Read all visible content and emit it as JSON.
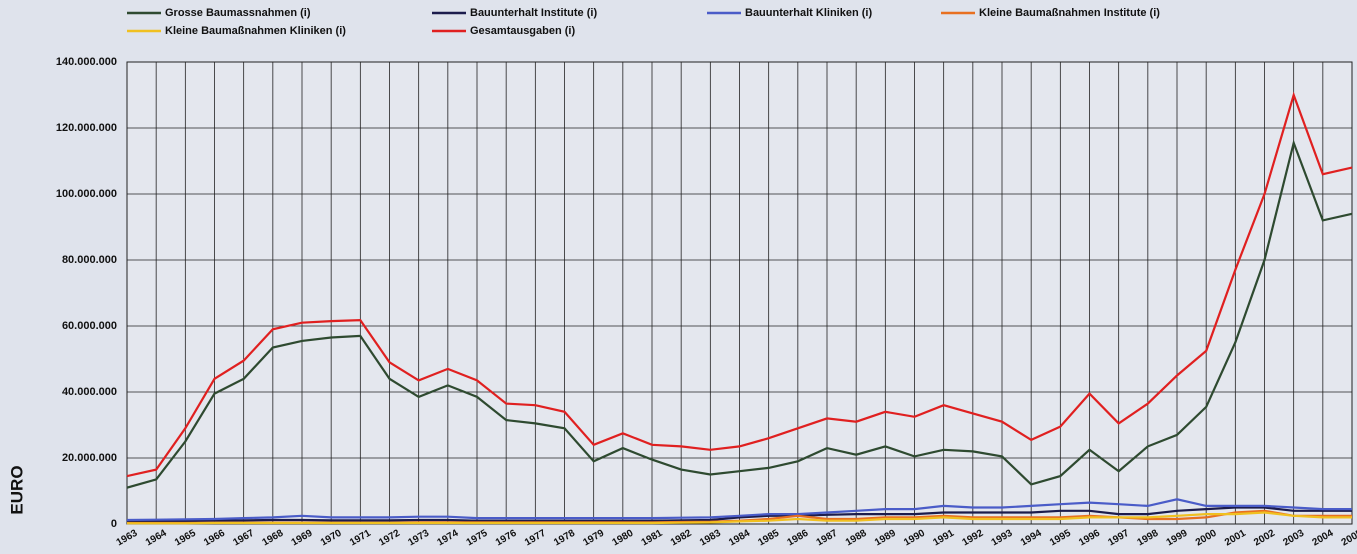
{
  "chart_data": {
    "type": "line",
    "ylabel": "EURO",
    "categories": [
      "1963",
      "1964",
      "1965",
      "1966",
      "1967",
      "1968",
      "1969",
      "1970",
      "1971",
      "1972",
      "1973",
      "1974",
      "1975",
      "1976",
      "1977",
      "1978",
      "1979",
      "1980",
      "1981",
      "1982",
      "1983",
      "1984",
      "1985",
      "1986",
      "1987",
      "1988",
      "1989",
      "1990",
      "1991",
      "1992",
      "1993",
      "1994",
      "1995",
      "1996",
      "1997",
      "1998",
      "1999",
      "2000",
      "2001",
      "2002",
      "2003",
      "2004",
      "2005"
    ],
    "ylim": [
      0,
      140000000
    ],
    "yticks": [
      0,
      {
        "value": 20000000,
        "label": "20.000.000"
      },
      {
        "value": 40000000,
        "label": "40.000.000"
      },
      {
        "value": 60000000,
        "label": "60.000.000"
      },
      {
        "value": 80000000,
        "label": "80.000.000"
      },
      {
        "value": 100000000,
        "label": "100.000.000"
      },
      {
        "value": 120000000,
        "label": "120.000.000"
      },
      {
        "value": 140000000,
        "label": "140.000.000"
      }
    ],
    "grid": true,
    "series": [
      {
        "name": "Grosse Baumassnahmen (i)",
        "color": "#2e4a30",
        "values": [
          11000000,
          13500000,
          25000000,
          39500000,
          44000000,
          53500000,
          55500000,
          56500000,
          57000000,
          44000000,
          38500000,
          42000000,
          38500000,
          31500000,
          30500000,
          29000000,
          19000000,
          23000000,
          19500000,
          16500000,
          15000000,
          16000000,
          17000000,
          19000000,
          23000000,
          21000000,
          23500000,
          20500000,
          22500000,
          22000000,
          20500000,
          12000000,
          14500000,
          22500000,
          16000000,
          23500000,
          27000000,
          35500000,
          55000000,
          80000000,
          115500000,
          92000000,
          94000000
        ]
      },
      {
        "name": "Bauunterhalt Institute (i)",
        "color": "#1c1c4c",
        "values": [
          800000,
          900000,
          900000,
          1000000,
          1100000,
          1200000,
          1200000,
          1100000,
          1100000,
          1100000,
          1200000,
          1200000,
          1000000,
          1000000,
          1000000,
          1000000,
          1000000,
          1000000,
          1000000,
          1100000,
          1200000,
          2000000,
          2500000,
          2500000,
          2800000,
          3000000,
          3000000,
          3000000,
          3500000,
          3500000,
          3500000,
          3500000,
          4000000,
          4000000,
          3000000,
          3000000,
          4000000,
          4500000,
          5000000,
          5000000,
          4000000,
          4000000,
          4000000
        ]
      },
      {
        "name": "Bauunterhalt Kliniken (i)",
        "color": "#4a5cc8",
        "values": [
          1200000,
          1300000,
          1400000,
          1500000,
          1800000,
          2000000,
          2500000,
          2000000,
          2000000,
          2000000,
          2200000,
          2200000,
          1800000,
          1800000,
          1800000,
          1800000,
          1800000,
          1800000,
          1800000,
          1900000,
          2000000,
          2500000,
          3000000,
          3000000,
          3500000,
          4000000,
          4500000,
          4500000,
          5500000,
          5000000,
          5000000,
          5500000,
          6000000,
          6500000,
          6000000,
          5500000,
          7500000,
          5500000,
          5500000,
          5500000,
          5000000,
          4500000,
          4500000
        ]
      },
      {
        "name": "Kleine Baumaßnahmen Institute (i)",
        "color": "#e87020",
        "values": [
          300000,
          300000,
          300000,
          400000,
          400000,
          400000,
          400000,
          400000,
          400000,
          400000,
          500000,
          500000,
          500000,
          500000,
          500000,
          500000,
          500000,
          500000,
          500000,
          600000,
          700000,
          1000000,
          1500000,
          2500000,
          1500000,
          1500000,
          2000000,
          2000000,
          2500000,
          2000000,
          2000000,
          2000000,
          2000000,
          2500000,
          2000000,
          1500000,
          1500000,
          2000000,
          3500000,
          4000000,
          2500000,
          2500000,
          2500000
        ]
      },
      {
        "name": "Kleine Baumaßnahmen Kliniken (i)",
        "color": "#f0c020",
        "values": [
          200000,
          200000,
          200000,
          300000,
          300000,
          300000,
          300000,
          300000,
          300000,
          300000,
          300000,
          300000,
          300000,
          300000,
          300000,
          300000,
          300000,
          300000,
          300000,
          400000,
          500000,
          800000,
          1000000,
          1500000,
          1000000,
          1000000,
          1500000,
          1500000,
          2000000,
          1500000,
          1500000,
          1500000,
          1500000,
          2000000,
          2000000,
          2000000,
          2500000,
          3000000,
          3000000,
          3500000,
          2500000,
          2000000,
          2000000
        ]
      },
      {
        "name": "Gesamtausgaben (i)",
        "color": "#e02020",
        "values": [
          14500000,
          16500000,
          29000000,
          44000000,
          49500000,
          59000000,
          61000000,
          61500000,
          61800000,
          49000000,
          43500000,
          47000000,
          43500000,
          36500000,
          36000000,
          34000000,
          24000000,
          27500000,
          24000000,
          23500000,
          22500000,
          23500000,
          26000000,
          29000000,
          32000000,
          31000000,
          34000000,
          32500000,
          36000000,
          33500000,
          31000000,
          25500000,
          29500000,
          39500000,
          30500000,
          36500000,
          45000000,
          52500000,
          77000000,
          100000000,
          130000000,
          106000000,
          108000000
        ]
      }
    ]
  }
}
